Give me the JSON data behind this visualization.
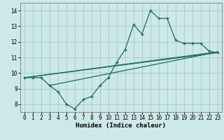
{
  "xlabel": "Humidex (Indice chaleur)",
  "xlim": [
    -0.5,
    23.5
  ],
  "ylim": [
    7.5,
    14.5
  ],
  "yticks": [
    8,
    9,
    10,
    11,
    12,
    13,
    14
  ],
  "xticks": [
    0,
    1,
    2,
    3,
    4,
    5,
    6,
    7,
    8,
    9,
    10,
    11,
    12,
    13,
    14,
    15,
    16,
    17,
    18,
    19,
    20,
    21,
    22,
    23
  ],
  "bg_color": "#cce8e8",
  "grid_color": "#aacccc",
  "line_color": "#1a6b6b",
  "curve1_x": [
    0,
    1,
    2,
    3,
    4,
    5,
    6,
    7,
    8,
    9,
    10,
    11,
    12,
    13,
    14,
    15,
    16,
    17,
    18,
    19,
    20,
    21,
    22,
    23
  ],
  "curve1_y": [
    9.7,
    9.7,
    9.7,
    9.2,
    8.8,
    8.0,
    7.7,
    8.3,
    8.5,
    9.2,
    9.7,
    10.7,
    11.5,
    13.1,
    12.5,
    14.0,
    13.5,
    13.5,
    12.1,
    11.9,
    11.9,
    11.9,
    11.4,
    11.3
  ],
  "line2_x": [
    0,
    23
  ],
  "line2_y": [
    9.7,
    11.3
  ],
  "line3_x": [
    0,
    23
  ],
  "line3_y": [
    9.7,
    11.35
  ],
  "line4_x": [
    3,
    23
  ],
  "line4_y": [
    9.2,
    11.35
  ]
}
